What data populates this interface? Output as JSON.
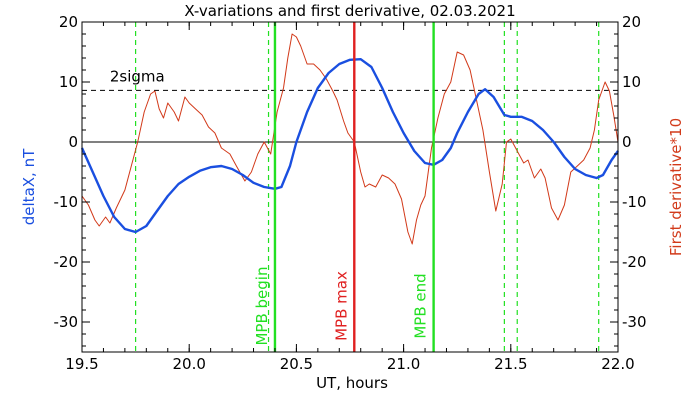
{
  "chart_data": {
    "type": "line",
    "title": "X-variations and first derivative, 02.03.2021",
    "xlabel": "UT, hours",
    "ylabel_left": "deltaX, nT",
    "ylabel_right": "First derivative*10",
    "xlim": [
      19.5,
      22.0
    ],
    "ylim": [
      -35,
      20
    ],
    "x_ticks": [
      19.5,
      20.0,
      20.5,
      21.0,
      21.5,
      22.0
    ],
    "x_tick_labels": [
      "19.5",
      "20.0",
      "20.5",
      "21.0",
      "21.5",
      "22.0"
    ],
    "y_ticks": [
      -30,
      -20,
      -10,
      0,
      10,
      20
    ],
    "y_tick_labels": [
      "-30",
      "-20",
      "-10",
      "0",
      "10",
      "20"
    ],
    "colors": {
      "deltaX": "#1a4fe0",
      "derivative": "#d23a1a",
      "mpb_begin_end": "#22e022",
      "mpb_max": "#e02020",
      "sigma": "#000000"
    },
    "threshold": {
      "label": "2sigma",
      "value": 8.6
    },
    "zero_line": 0,
    "vertical_markers": [
      {
        "x": 20.4,
        "label": "MPB begin",
        "kind": "begin"
      },
      {
        "x": 20.77,
        "label": "MPB max",
        "kind": "max"
      },
      {
        "x": 21.14,
        "label": "MPB end",
        "kind": "end"
      }
    ],
    "dashed_markers": [
      19.75,
      20.37,
      21.47,
      21.53,
      21.91
    ],
    "series": [
      {
        "name": "deltaX",
        "values": [
          [
            19.5,
            -1
          ],
          [
            19.55,
            -5
          ],
          [
            19.6,
            -9
          ],
          [
            19.65,
            -12.5
          ],
          [
            19.7,
            -14.5
          ],
          [
            19.75,
            -15
          ],
          [
            19.8,
            -14
          ],
          [
            19.85,
            -11.5
          ],
          [
            19.9,
            -9
          ],
          [
            19.95,
            -7
          ],
          [
            20.0,
            -5.8
          ],
          [
            20.05,
            -4.8
          ],
          [
            20.1,
            -4.2
          ],
          [
            20.15,
            -4
          ],
          [
            20.2,
            -4.5
          ],
          [
            20.25,
            -5.5
          ],
          [
            20.3,
            -6.8
          ],
          [
            20.35,
            -7.5
          ],
          [
            20.4,
            -7.8
          ],
          [
            20.43,
            -7.5
          ],
          [
            20.47,
            -4
          ],
          [
            20.5,
            0
          ],
          [
            20.55,
            5
          ],
          [
            20.6,
            9
          ],
          [
            20.65,
            11.5
          ],
          [
            20.7,
            13
          ],
          [
            20.75,
            13.7
          ],
          [
            20.8,
            13.8
          ],
          [
            20.85,
            12.5
          ],
          [
            20.9,
            9
          ],
          [
            20.95,
            5
          ],
          [
            21.0,
            1.5
          ],
          [
            21.05,
            -1.5
          ],
          [
            21.1,
            -3.5
          ],
          [
            21.14,
            -3.8
          ],
          [
            21.18,
            -3
          ],
          [
            21.22,
            -1
          ],
          [
            21.25,
            1.5
          ],
          [
            21.3,
            5
          ],
          [
            21.35,
            8
          ],
          [
            21.38,
            8.8
          ],
          [
            21.42,
            7.5
          ],
          [
            21.47,
            4.5
          ],
          [
            21.5,
            4.2
          ],
          [
            21.55,
            4.2
          ],
          [
            21.6,
            3.5
          ],
          [
            21.65,
            2
          ],
          [
            21.7,
            0
          ],
          [
            21.75,
            -2.5
          ],
          [
            21.8,
            -4.5
          ],
          [
            21.85,
            -5.5
          ],
          [
            21.9,
            -6
          ],
          [
            21.93,
            -5.5
          ],
          [
            21.97,
            -3
          ],
          [
            22.0,
            -1.5
          ]
        ]
      },
      {
        "name": "First derivative*10",
        "values": [
          [
            19.5,
            -9
          ],
          [
            19.53,
            -10.5
          ],
          [
            19.56,
            -13
          ],
          [
            19.58,
            -14
          ],
          [
            19.61,
            -12.5
          ],
          [
            19.63,
            -13.5
          ],
          [
            19.66,
            -11
          ],
          [
            19.7,
            -8
          ],
          [
            19.73,
            -4
          ],
          [
            19.76,
            0
          ],
          [
            19.79,
            5
          ],
          [
            19.82,
            8
          ],
          [
            19.84,
            8.5
          ],
          [
            19.86,
            5.5
          ],
          [
            19.88,
            4
          ],
          [
            19.9,
            6.5
          ],
          [
            19.93,
            5
          ],
          [
            19.95,
            3.5
          ],
          [
            19.98,
            7.5
          ],
          [
            20.0,
            6.5
          ],
          [
            20.03,
            5.5
          ],
          [
            20.06,
            4.5
          ],
          [
            20.09,
            2.5
          ],
          [
            20.12,
            1.5
          ],
          [
            20.15,
            -1
          ],
          [
            20.19,
            -2
          ],
          [
            20.22,
            -4
          ],
          [
            20.26,
            -6.5
          ],
          [
            20.29,
            -5
          ],
          [
            20.32,
            -2
          ],
          [
            20.35,
            0
          ],
          [
            20.38,
            -2
          ],
          [
            20.41,
            5
          ],
          [
            20.44,
            9
          ],
          [
            20.46,
            14
          ],
          [
            20.48,
            18
          ],
          [
            20.5,
            17.5
          ],
          [
            20.52,
            16
          ],
          [
            20.55,
            13
          ],
          [
            20.58,
            13
          ],
          [
            20.61,
            12
          ],
          [
            20.64,
            10.5
          ],
          [
            20.67,
            8.5
          ],
          [
            20.69,
            7
          ],
          [
            20.72,
            3.5
          ],
          [
            20.74,
            1.5
          ],
          [
            20.77,
            0
          ],
          [
            20.8,
            -5
          ],
          [
            20.82,
            -7.5
          ],
          [
            20.84,
            -7
          ],
          [
            20.87,
            -7.5
          ],
          [
            20.9,
            -5.5
          ],
          [
            20.93,
            -6
          ],
          [
            20.96,
            -7
          ],
          [
            20.99,
            -9.5
          ],
          [
            21.02,
            -15
          ],
          [
            21.04,
            -17
          ],
          [
            21.06,
            -13
          ],
          [
            21.08,
            -10.5
          ],
          [
            21.1,
            -9
          ],
          [
            21.13,
            -1
          ],
          [
            21.16,
            4
          ],
          [
            21.19,
            8
          ],
          [
            21.22,
            10
          ],
          [
            21.25,
            15
          ],
          [
            21.28,
            14.5
          ],
          [
            21.31,
            12
          ],
          [
            21.34,
            7
          ],
          [
            21.37,
            2
          ],
          [
            21.4,
            -5
          ],
          [
            21.43,
            -11.5
          ],
          [
            21.46,
            -7
          ],
          [
            21.48,
            0
          ],
          [
            21.5,
            0.5
          ],
          [
            21.53,
            -1.5
          ],
          [
            21.56,
            -3.5
          ],
          [
            21.58,
            -3
          ],
          [
            21.61,
            -6
          ],
          [
            21.64,
            -4.5
          ],
          [
            21.66,
            -6
          ],
          [
            21.69,
            -11
          ],
          [
            21.72,
            -13
          ],
          [
            21.75,
            -10.5
          ],
          [
            21.78,
            -5
          ],
          [
            21.81,
            -4
          ],
          [
            21.84,
            -3
          ],
          [
            21.87,
            -1
          ],
          [
            21.89,
            2
          ],
          [
            21.91,
            7
          ],
          [
            21.94,
            10
          ],
          [
            21.96,
            8.5
          ],
          [
            21.98,
            4.5
          ],
          [
            22.0,
            0
          ]
        ]
      }
    ]
  }
}
